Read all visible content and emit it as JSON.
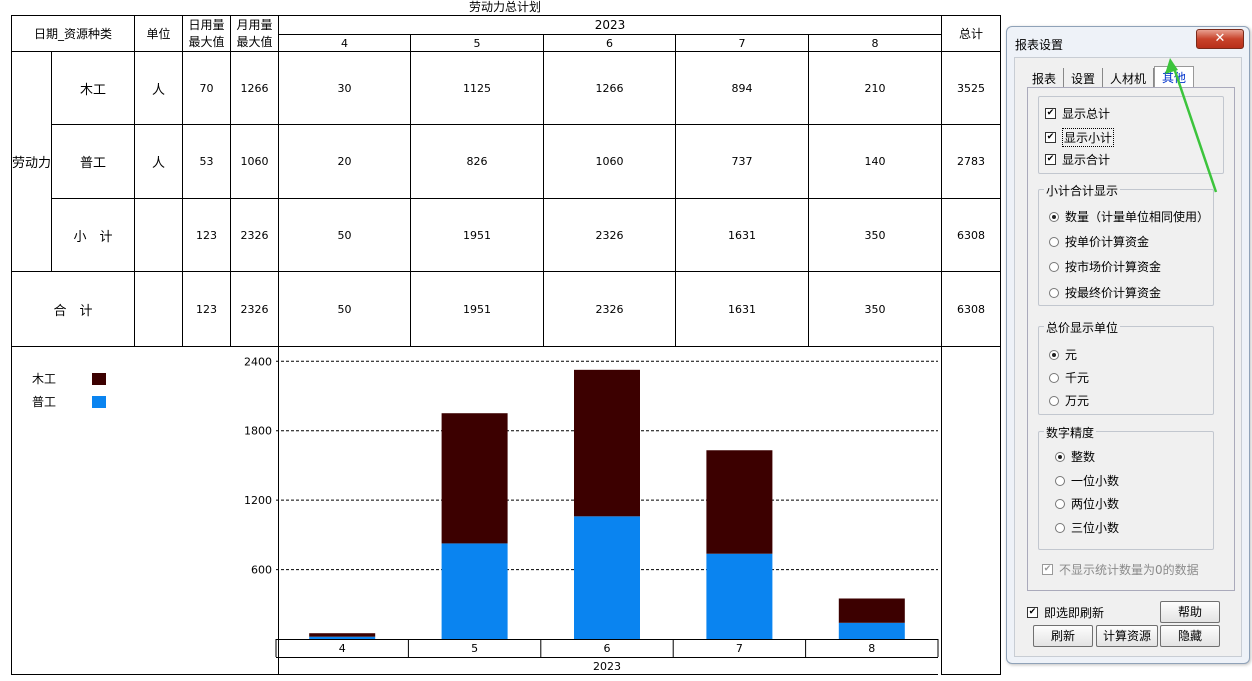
{
  "report": {
    "title": "劳动力总计划",
    "header": {
      "date_resource": "日期_资源种类",
      "unit": "单位",
      "daily_max_1": "日用量",
      "daily_max_2": "最大值",
      "monthly_max_1": "月用量",
      "monthly_max_2": "最大值",
      "year": "2023",
      "total": "总计",
      "months": [
        "4",
        "5",
        "6",
        "7",
        "8"
      ]
    },
    "group_label": "劳动力",
    "rows": [
      {
        "name": "木工",
        "unit": "人",
        "daily_max": "70",
        "monthly_max": "1266",
        "values": [
          "30",
          "1125",
          "1266",
          "894",
          "210"
        ],
        "total": "3525"
      },
      {
        "name": "普工",
        "unit": "人",
        "daily_max": "53",
        "monthly_max": "1060",
        "values": [
          "20",
          "826",
          "1060",
          "737",
          "140"
        ],
        "total": "2783"
      },
      {
        "name": "小　计",
        "unit": "",
        "daily_max": "123",
        "monthly_max": "2326",
        "values": [
          "50",
          "1951",
          "2326",
          "1631",
          "350"
        ],
        "total": "6308"
      }
    ],
    "grand_total": {
      "name": "合　计",
      "unit": "",
      "daily_max": "123",
      "monthly_max": "2326",
      "values": [
        "50",
        "1951",
        "2326",
        "1631",
        "350"
      ],
      "total": "6308"
    }
  },
  "chart_data": {
    "type": "bar",
    "stacked": true,
    "categories": [
      "4",
      "5",
      "6",
      "7",
      "8"
    ],
    "category_group": "2023",
    "series": [
      {
        "name": "木工",
        "values": [
          30,
          1125,
          1266,
          894,
          210
        ],
        "color": "#3c0000"
      },
      {
        "name": "普工",
        "values": [
          20,
          826,
          1060,
          737,
          140
        ],
        "color": "#0a84f0"
      }
    ],
    "y_ticks": [
      600,
      1200,
      1800,
      2400
    ],
    "ylim": [
      0,
      2480
    ],
    "grid": "dashed horizontal",
    "legend": "top-left"
  },
  "dialog": {
    "title": "报表设置",
    "close_label": "✕",
    "tabs": [
      "报表",
      "设置",
      "人材机",
      "其他"
    ],
    "active_tab": "其他",
    "show_options": [
      {
        "label": "显示总计",
        "checked": "✔"
      },
      {
        "label": "显示小计",
        "checked": "✔"
      },
      {
        "label": "显示合计",
        "checked": "✔"
      }
    ],
    "subtotal_group": {
      "title": "小计合计显示",
      "options": [
        "数量（计量单位相同使用）",
        "按单价计算资金",
        "按市场价计算资金",
        "按最终价计算资金"
      ],
      "selected": "数量（计量单位相同使用）"
    },
    "price_unit_group": {
      "title": "总价显示单位",
      "options": [
        "元",
        "千元",
        "万元"
      ],
      "selected": "元"
    },
    "precision_group": {
      "title": "数字精度",
      "options": [
        "整数",
        "一位小数",
        "两位小数",
        "三位小数"
      ],
      "selected": "整数"
    },
    "hide_zero": {
      "label": "不显示统计数量为0的数据",
      "checked": "✔"
    },
    "instant_refresh": {
      "label": "即选即刷新",
      "checked": "✔"
    },
    "buttons": {
      "help": "帮助",
      "refresh": "刷新",
      "calc": "计算资源",
      "hide": "隐藏"
    }
  },
  "colors": {
    "annotation_arrow": "#3cc43c",
    "active_tab_text": "#0033cc"
  }
}
